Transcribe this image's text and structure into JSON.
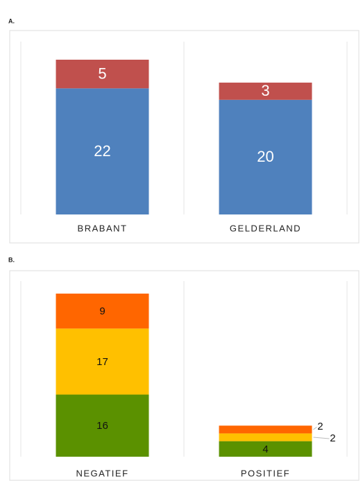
{
  "chart_data": [
    {
      "type": "bar",
      "stacked": true,
      "title": "A.",
      "categories": [
        "BRABANT",
        "GELDERLAND"
      ],
      "series": [
        {
          "color": "#4f81bd",
          "values": [
            22,
            20
          ]
        },
        {
          "color": "#c0504d",
          "values": [
            5,
            3
          ]
        }
      ],
      "label_color": "#ffffff"
    },
    {
      "type": "bar",
      "stacked": true,
      "title": "B.",
      "categories": [
        "NEGATIEF",
        "POSITIEF"
      ],
      "series": [
        {
          "color": "#5b9100",
          "values": [
            16,
            4
          ]
        },
        {
          "color": "#ffc000",
          "values": [
            17,
            2
          ]
        },
        {
          "color": "#ff6600",
          "values": [
            9,
            2
          ]
        }
      ],
      "label_color": "#111111"
    }
  ]
}
